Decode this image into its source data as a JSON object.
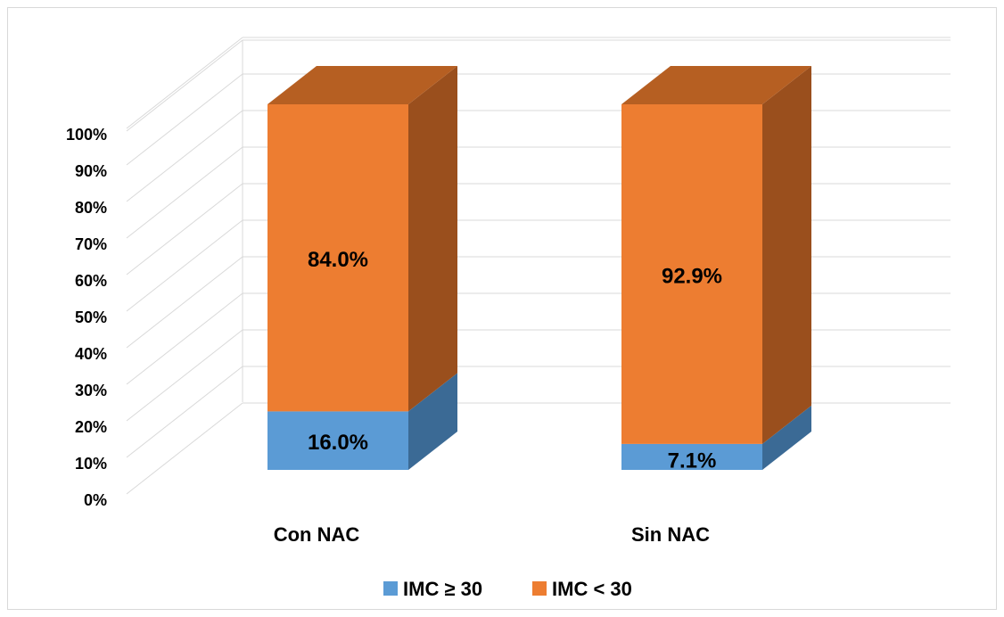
{
  "chart_data": {
    "type": "bar",
    "stacked": true,
    "percent": true,
    "three_d": true,
    "categories": [
      "Con NAC",
      "Sin NAC"
    ],
    "series": [
      {
        "name": "IMC ≥ 30",
        "values": [
          16.0,
          7.1
        ],
        "labels": [
          "16.0%",
          "7.1%"
        ],
        "color": "#5b9bd5",
        "side_color": "#3b6a95",
        "top_color": "#4f86b8"
      },
      {
        "name": "IMC < 30",
        "values": [
          84.0,
          92.9
        ],
        "labels": [
          "84.0%",
          "92.9%"
        ],
        "color": "#ed7d31",
        "side_color": "#9a4f1d",
        "top_color": "#b65f22"
      }
    ],
    "y_ticks": [
      "0%",
      "10%",
      "20%",
      "30%",
      "40%",
      "50%",
      "60%",
      "70%",
      "80%",
      "90%",
      "100%"
    ],
    "ylim": [
      0,
      100
    ],
    "grid": true,
    "legend_position": "bottom"
  }
}
